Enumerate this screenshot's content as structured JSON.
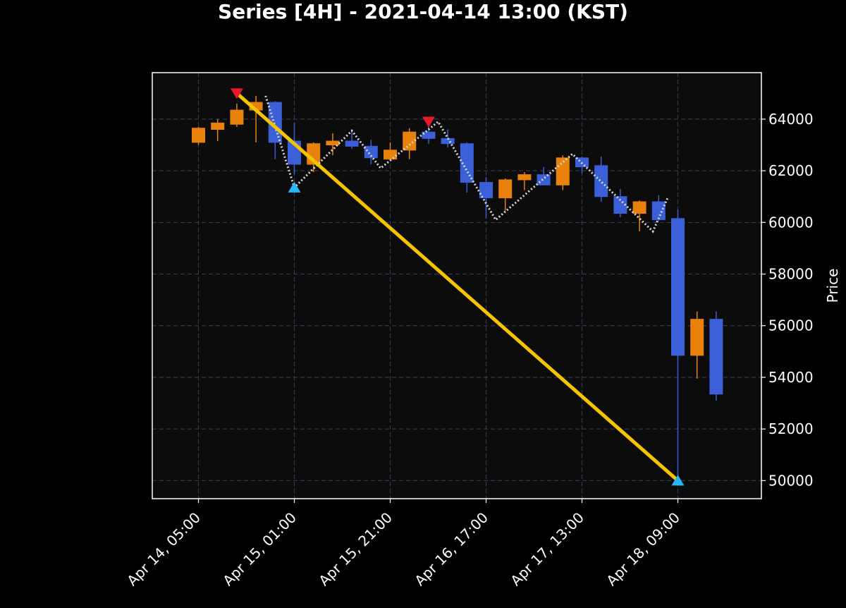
{
  "chart_data": {
    "type": "candlestick",
    "title": "Series [4H] - 2021-04-14 13:00 (KST)",
    "xlabel": "",
    "ylabel": "Price",
    "ylim": [
      49300,
      65800
    ],
    "grid": true,
    "x_tick_labels": [
      "Apr 14, 05:00",
      "Apr 15, 01:00",
      "Apr 15, 21:00",
      "Apr 16, 17:00",
      "Apr 17, 13:00",
      "Apr 18, 09:00"
    ],
    "x_tick_indices": [
      0,
      5,
      10,
      15,
      20,
      25
    ],
    "y_ticks": [
      50000,
      52000,
      54000,
      56000,
      58000,
      60000,
      62000,
      64000
    ],
    "colors": {
      "background": "#000000",
      "plot_background": "#0c0c0c",
      "up": "#e8820c",
      "down": "#3a5fd6",
      "grid": "#3b3f5c",
      "trend_line": "#f5c400",
      "zigzag": "#d8d8d8",
      "peak_marker": "#e8192c",
      "trough_marker": "#29b6f6"
    },
    "candles": [
      {
        "o": 63100,
        "h": 63700,
        "l": 63000,
        "c": 63650
      },
      {
        "o": 63600,
        "h": 64000,
        "l": 63150,
        "c": 63850
      },
      {
        "o": 63800,
        "h": 64600,
        "l": 63700,
        "c": 64350
      },
      {
        "o": 64350,
        "h": 64900,
        "l": 63100,
        "c": 64650
      },
      {
        "o": 64650,
        "h": 64700,
        "l": 62450,
        "c": 63100
      },
      {
        "o": 63150,
        "h": 63850,
        "l": 61850,
        "c": 62250
      },
      {
        "o": 62250,
        "h": 63100,
        "l": 61950,
        "c": 63050
      },
      {
        "o": 63000,
        "h": 63450,
        "l": 62600,
        "c": 63150
      },
      {
        "o": 63150,
        "h": 63600,
        "l": 62850,
        "c": 62950
      },
      {
        "o": 62950,
        "h": 63200,
        "l": 62250,
        "c": 62500
      },
      {
        "o": 62450,
        "h": 63100,
        "l": 62400,
        "c": 62800
      },
      {
        "o": 62800,
        "h": 63650,
        "l": 62450,
        "c": 63500
      },
      {
        "o": 63500,
        "h": 63800,
        "l": 63050,
        "c": 63250
      },
      {
        "o": 63250,
        "h": 63600,
        "l": 62900,
        "c": 63050
      },
      {
        "o": 63050,
        "h": 63100,
        "l": 61150,
        "c": 61550
      },
      {
        "o": 61550,
        "h": 61750,
        "l": 60150,
        "c": 60950
      },
      {
        "o": 60950,
        "h": 61700,
        "l": 60450,
        "c": 61650
      },
      {
        "o": 61650,
        "h": 61950,
        "l": 61250,
        "c": 61850
      },
      {
        "o": 61850,
        "h": 62150,
        "l": 61450,
        "c": 61450
      },
      {
        "o": 61450,
        "h": 62600,
        "l": 61250,
        "c": 62500
      },
      {
        "o": 62500,
        "h": 62550,
        "l": 61900,
        "c": 62150
      },
      {
        "o": 62200,
        "h": 62550,
        "l": 60800,
        "c": 61000
      },
      {
        "o": 61000,
        "h": 61300,
        "l": 60200,
        "c": 60350
      },
      {
        "o": 60350,
        "h": 60850,
        "l": 59650,
        "c": 60800
      },
      {
        "o": 60800,
        "h": 61050,
        "l": 60050,
        "c": 60100
      },
      {
        "o": 60150,
        "h": 60500,
        "l": 50000,
        "c": 54850
      },
      {
        "o": 54850,
        "h": 56550,
        "l": 53950,
        "c": 56250
      },
      {
        "o": 56250,
        "h": 56550,
        "l": 53100,
        "c": 53350
      }
    ],
    "zigzag": [
      {
        "i": 3.5,
        "y": 64900
      },
      {
        "i": 5,
        "y": 61350
      },
      {
        "i": 8,
        "y": 63550
      },
      {
        "i": 9.5,
        "y": 62100
      },
      {
        "i": 12.5,
        "y": 63900
      },
      {
        "i": 15.5,
        "y": 60100
      },
      {
        "i": 19.5,
        "y": 62650
      },
      {
        "i": 23.7,
        "y": 59650
      },
      {
        "i": 24.5,
        "y": 61000
      }
    ],
    "trend_line": [
      {
        "i": 2,
        "y": 65000
      },
      {
        "i": 25,
        "y": 50000
      }
    ],
    "peak_markers": [
      {
        "i": 2,
        "y": 65000
      },
      {
        "i": 12,
        "y": 63900
      }
    ],
    "trough_markers": [
      {
        "i": 5,
        "y": 61350
      },
      {
        "i": 25,
        "y": 50000
      }
    ]
  }
}
